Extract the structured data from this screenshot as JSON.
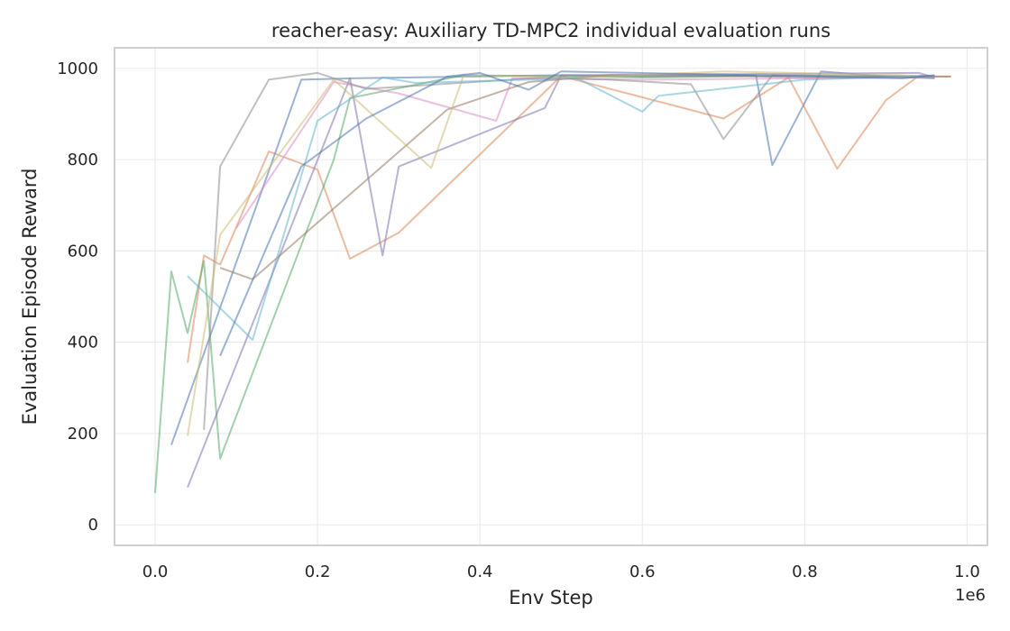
{
  "chart_data": {
    "type": "line",
    "title": "reacher-easy: Auxiliary TD-MPC2 individual evaluation runs",
    "xlabel": "Env Step",
    "ylabel": "Evaluation Episode Reward",
    "x_offset_text": "1e6",
    "x_scale": 1000000,
    "xlim": [
      -0.05,
      1.025
    ],
    "ylim": [
      -45,
      1045
    ],
    "xticks": [
      0.0,
      0.2,
      0.4,
      0.6,
      0.8,
      1.0
    ],
    "xtick_labels": [
      "0.0",
      "0.2",
      "0.4",
      "0.6",
      "0.8",
      "1.0"
    ],
    "yticks": [
      0,
      200,
      400,
      600,
      800,
      1000
    ],
    "ytick_labels": [
      "0",
      "200",
      "400",
      "600",
      "800",
      "1000"
    ],
    "grid": true,
    "legend": "none",
    "series": [
      {
        "color": "#4c72b0",
        "points": [
          [
            20000,
            175
          ],
          [
            180000,
            975
          ],
          [
            240000,
            978
          ],
          [
            500000,
            985
          ],
          [
            600000,
            982
          ],
          [
            740000,
            984
          ],
          [
            760000,
            788
          ],
          [
            820000,
            993
          ],
          [
            900000,
            982
          ],
          [
            960000,
            978
          ]
        ]
      },
      {
        "color": "#dd8452",
        "points": [
          [
            40000,
            355
          ],
          [
            60000,
            590
          ],
          [
            80000,
            570
          ],
          [
            140000,
            818
          ],
          [
            200000,
            778
          ],
          [
            240000,
            583
          ],
          [
            300000,
            640
          ],
          [
            500000,
            983
          ],
          [
            700000,
            890
          ],
          [
            780000,
            980
          ],
          [
            840000,
            780
          ],
          [
            900000,
            930
          ],
          [
            940000,
            983
          ],
          [
            980000,
            982
          ]
        ]
      },
      {
        "color": "#55a868",
        "points": [
          [
            0,
            70
          ],
          [
            20000,
            555
          ],
          [
            40000,
            420
          ],
          [
            60000,
            578
          ],
          [
            80000,
            145
          ],
          [
            220000,
            800
          ],
          [
            240000,
            935
          ],
          [
            380000,
            985
          ],
          [
            520000,
            982
          ],
          [
            600000,
            980
          ],
          [
            800000,
            984
          ],
          [
            960000,
            980
          ]
        ]
      },
      {
        "color": "#8172b3",
        "points": [
          [
            40000,
            82
          ],
          [
            240000,
            978
          ],
          [
            280000,
            590
          ],
          [
            300000,
            785
          ],
          [
            480000,
            913
          ],
          [
            500000,
            985
          ],
          [
            940000,
            990
          ],
          [
            960000,
            980
          ]
        ]
      },
      {
        "color": "#937860",
        "points": [
          [
            80000,
            563
          ],
          [
            120000,
            538
          ],
          [
            360000,
            910
          ],
          [
            460000,
            970
          ],
          [
            560000,
            985
          ],
          [
            700000,
            984
          ],
          [
            800000,
            980
          ],
          [
            980000,
            982
          ]
        ]
      },
      {
        "color": "#da8bc3",
        "points": [
          [
            100000,
            650
          ],
          [
            220000,
            970
          ],
          [
            300000,
            945
          ],
          [
            420000,
            885
          ],
          [
            440000,
            978
          ],
          [
            600000,
            975
          ],
          [
            800000,
            978
          ],
          [
            960000,
            980
          ]
        ]
      },
      {
        "color": "#8c8c8c",
        "points": [
          [
            60000,
            208
          ],
          [
            80000,
            785
          ],
          [
            140000,
            975
          ],
          [
            200000,
            990
          ],
          [
            260000,
            955
          ],
          [
            480000,
            980
          ],
          [
            560000,
            975
          ],
          [
            660000,
            965
          ],
          [
            700000,
            845
          ],
          [
            760000,
            985
          ],
          [
            960000,
            983
          ]
        ]
      },
      {
        "color": "#ccb974",
        "points": [
          [
            40000,
            195
          ],
          [
            80000,
            635
          ],
          [
            220000,
            975
          ],
          [
            340000,
            782
          ],
          [
            380000,
            985
          ],
          [
            520000,
            980
          ],
          [
            700000,
            993
          ],
          [
            920000,
            985
          ],
          [
            940000,
            982
          ]
        ]
      },
      {
        "color": "#64b5cd",
        "points": [
          [
            40000,
            545
          ],
          [
            120000,
            405
          ],
          [
            200000,
            885
          ],
          [
            280000,
            980
          ],
          [
            320000,
            968
          ],
          [
            520000,
            978
          ],
          [
            600000,
            905
          ],
          [
            620000,
            940
          ],
          [
            800000,
            975
          ],
          [
            960000,
            984
          ]
        ]
      },
      {
        "color": "#4c72b0",
        "points": [
          [
            80000,
            370
          ],
          [
            180000,
            785
          ],
          [
            260000,
            890
          ],
          [
            320000,
            945
          ],
          [
            360000,
            982
          ],
          [
            400000,
            990
          ],
          [
            460000,
            953
          ],
          [
            500000,
            993
          ],
          [
            740000,
            985
          ],
          [
            920000,
            978
          ],
          [
            960000,
            985
          ]
        ]
      }
    ]
  }
}
